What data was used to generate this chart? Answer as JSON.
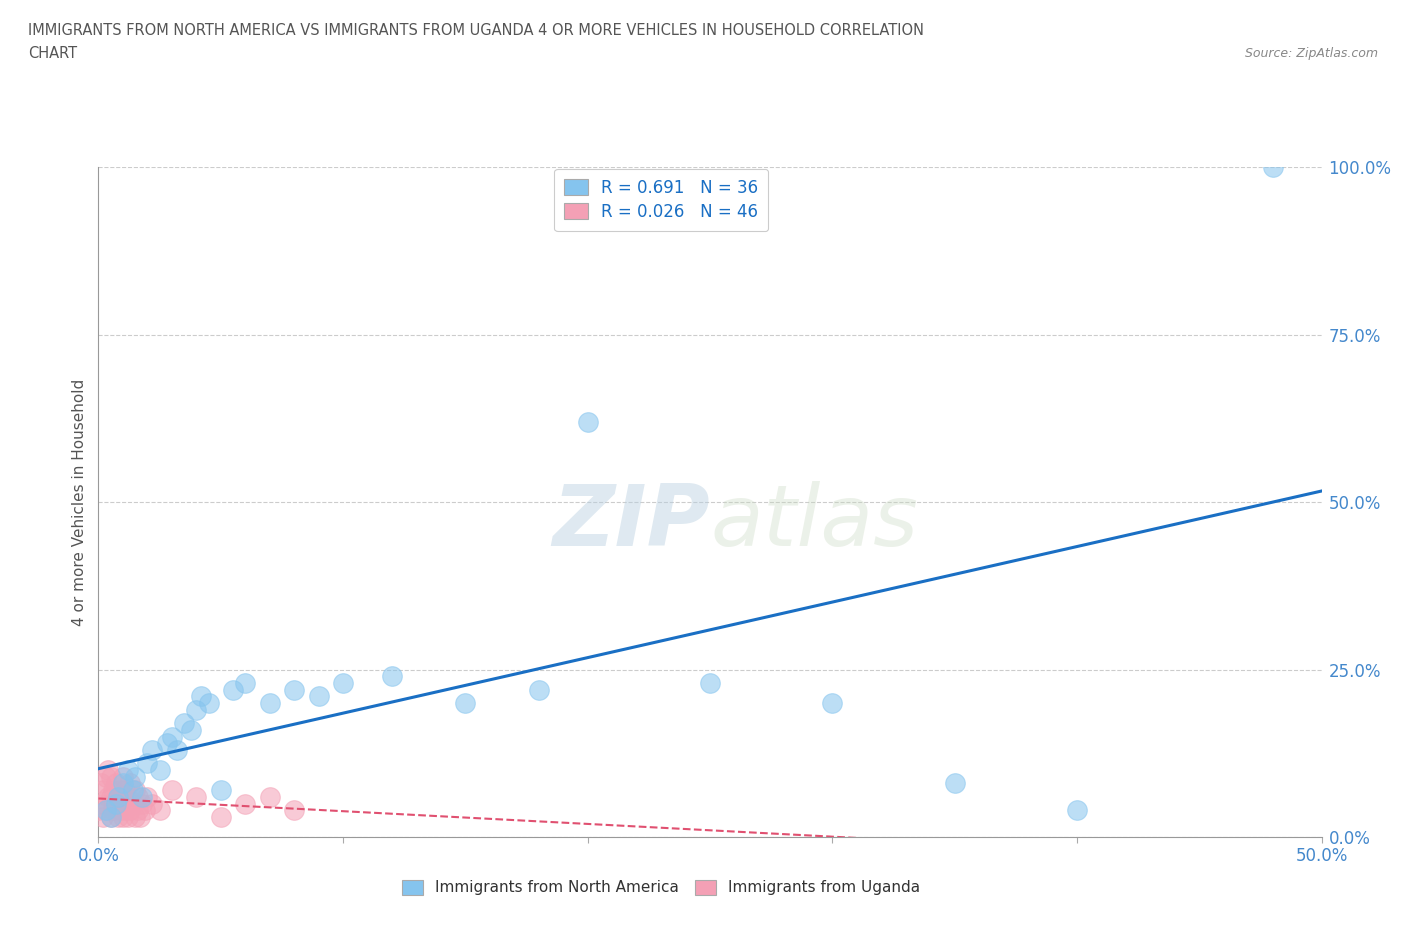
{
  "title_line1": "IMMIGRANTS FROM NORTH AMERICA VS IMMIGRANTS FROM UGANDA 4 OR MORE VEHICLES IN HOUSEHOLD CORRELATION",
  "title_line2": "CHART",
  "source": "Source: ZipAtlas.com",
  "ylabel": "4 or more Vehicles in Household",
  "xlim": [
    0.0,
    0.5
  ],
  "ylim": [
    0.0,
    1.0
  ],
  "xticks": [
    0.0,
    0.1,
    0.2,
    0.3,
    0.4,
    0.5
  ],
  "xtick_labels": [
    "0.0%",
    "",
    "",
    "",
    "",
    "50.0%"
  ],
  "ytick_labels": [
    "0.0%",
    "25.0%",
    "50.0%",
    "75.0%",
    "100.0%"
  ],
  "yticks": [
    0.0,
    0.25,
    0.5,
    0.75,
    1.0
  ],
  "r_north_america": 0.691,
  "n_north_america": 36,
  "r_uganda": 0.026,
  "n_uganda": 46,
  "color_north_america": "#85c4ee",
  "color_uganda": "#f4a0b5",
  "line_color_north_america": "#1a6fc4",
  "line_color_uganda": "#e05070",
  "watermark_color": "#d0dde8",
  "north_america_x": [
    0.003,
    0.005,
    0.007,
    0.008,
    0.01,
    0.012,
    0.014,
    0.015,
    0.018,
    0.02,
    0.022,
    0.025,
    0.028,
    0.03,
    0.032,
    0.035,
    0.038,
    0.04,
    0.042,
    0.045,
    0.05,
    0.055,
    0.06,
    0.07,
    0.08,
    0.09,
    0.1,
    0.12,
    0.15,
    0.18,
    0.2,
    0.25,
    0.3,
    0.35,
    0.4,
    0.48
  ],
  "north_america_y": [
    0.04,
    0.03,
    0.05,
    0.06,
    0.08,
    0.1,
    0.07,
    0.09,
    0.06,
    0.11,
    0.13,
    0.1,
    0.14,
    0.15,
    0.13,
    0.17,
    0.16,
    0.19,
    0.21,
    0.2,
    0.07,
    0.22,
    0.23,
    0.2,
    0.22,
    0.21,
    0.23,
    0.24,
    0.2,
    0.22,
    0.62,
    0.23,
    0.2,
    0.08,
    0.04,
    1.0
  ],
  "uganda_x": [
    0.0,
    0.001,
    0.001,
    0.002,
    0.002,
    0.003,
    0.003,
    0.004,
    0.004,
    0.005,
    0.005,
    0.005,
    0.006,
    0.006,
    0.007,
    0.007,
    0.008,
    0.008,
    0.009,
    0.009,
    0.01,
    0.01,
    0.01,
    0.011,
    0.011,
    0.012,
    0.012,
    0.013,
    0.013,
    0.014,
    0.015,
    0.015,
    0.016,
    0.016,
    0.017,
    0.018,
    0.019,
    0.02,
    0.022,
    0.025,
    0.03,
    0.04,
    0.05,
    0.06,
    0.07,
    0.08
  ],
  "uganda_y": [
    0.04,
    0.05,
    0.08,
    0.03,
    0.07,
    0.04,
    0.09,
    0.06,
    0.1,
    0.03,
    0.06,
    0.09,
    0.04,
    0.07,
    0.05,
    0.08,
    0.03,
    0.06,
    0.04,
    0.07,
    0.03,
    0.06,
    0.09,
    0.04,
    0.07,
    0.03,
    0.06,
    0.04,
    0.08,
    0.05,
    0.03,
    0.07,
    0.04,
    0.06,
    0.03,
    0.05,
    0.04,
    0.06,
    0.05,
    0.04,
    0.07,
    0.06,
    0.03,
    0.05,
    0.06,
    0.04
  ]
}
